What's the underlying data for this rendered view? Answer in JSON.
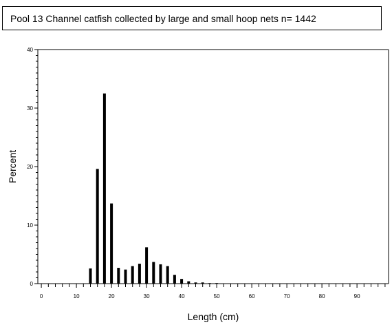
{
  "title": "Pool 13 Channel catfish collected by large and small hoop nets n= 1442",
  "chart_data": {
    "type": "bar",
    "title": "Pool 13 Channel catfish collected by large and small hoop nets n= 1442",
    "xlabel": "Length (cm)",
    "ylabel": "Percent",
    "xlim": [
      -1,
      99
    ],
    "ylim": [
      0,
      40
    ],
    "grid": false,
    "x_ticks": [
      0,
      10,
      20,
      30,
      40,
      50,
      60,
      70,
      80,
      90
    ],
    "y_ticks": [
      0,
      10,
      20,
      30,
      40
    ],
    "x_tick_labels": [
      "0",
      "10",
      "20",
      "30",
      "40",
      "50",
      "60",
      "70",
      "80",
      "90"
    ],
    "y_tick_labels": [
      "0",
      "10",
      "20",
      "30",
      "40"
    ],
    "x": [
      14,
      16,
      18,
      20,
      22,
      24,
      26,
      28,
      30,
      32,
      34,
      36,
      38,
      40,
      42,
      44,
      46,
      48,
      50
    ],
    "values": [
      2.6,
      19.6,
      32.5,
      13.7,
      2.7,
      2.4,
      3.0,
      3.4,
      6.2,
      3.7,
      3.3,
      3.0,
      1.5,
      0.8,
      0.4,
      0.2,
      0.2,
      0.05,
      0.1
    ]
  }
}
